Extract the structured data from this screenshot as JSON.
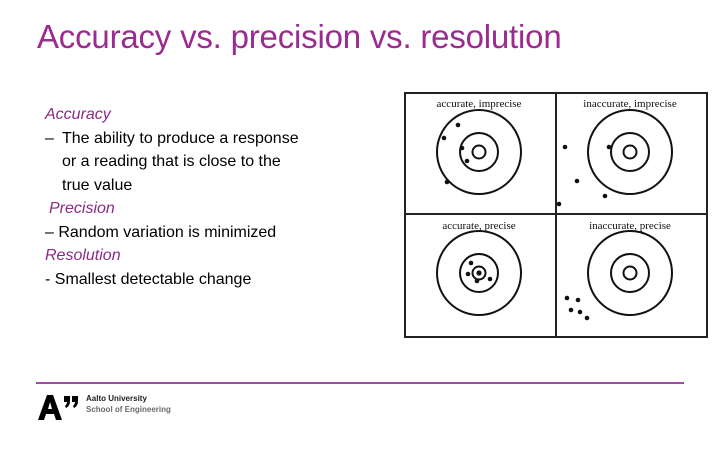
{
  "slide": {
    "title": "Accuracy vs. precision vs. resolution"
  },
  "content": {
    "accuracy_term": "Accuracy",
    "accuracy_dash": "–",
    "accuracy_def_line1": "The ability to produce a response",
    "accuracy_def_line2": "or a reading that is close to the",
    "accuracy_def_line3": "true value",
    "precision_term": "Precision",
    "precision_def": "– Random variation is minimized",
    "resolution_term": "Resolution",
    "resolution_def": "- Smallest detectable change"
  },
  "figure": {
    "panels": [
      {
        "label": "accurate, imprecise"
      },
      {
        "label": "inaccurate, imprecise"
      },
      {
        "label": "accurate, precise"
      },
      {
        "label": "inaccurate, precise"
      }
    ]
  },
  "footer": {
    "university": "Aalto University",
    "school": "School of Engineering"
  },
  "colors": {
    "title": "#9a2b8f",
    "term": "#8b2a89",
    "divider": "#a64aa8"
  }
}
